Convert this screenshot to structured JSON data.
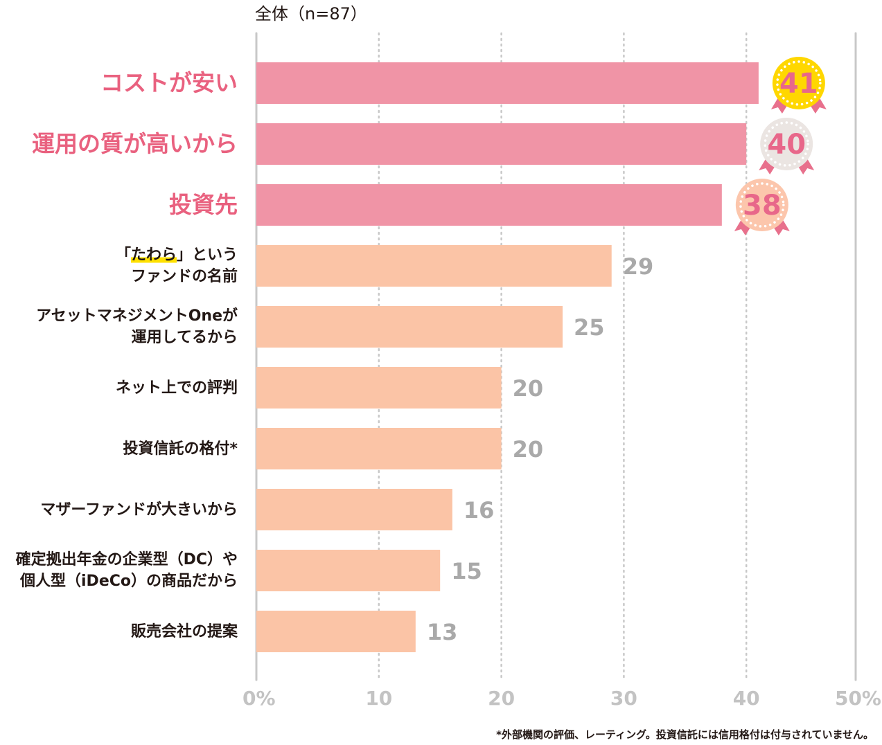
{
  "chart_data": {
    "type": "bar",
    "orientation": "horizontal",
    "title": "全体（n=87）",
    "categories": [
      [
        "コストが安い"
      ],
      [
        "運用の質が高いから"
      ],
      [
        "投資先"
      ],
      [
        "「たわら」という",
        "ファンドの名前"
      ],
      [
        "アセットマネジメントOneが",
        "運用してるから"
      ],
      [
        "ネット上での評判"
      ],
      [
        "投資信託の格付*"
      ],
      [
        "マザーファンドが大きいから"
      ],
      [
        "確定拠出年金の企業型（DC）や",
        "個人型（iDeCo）の商品だから"
      ],
      [
        "販売会社の提案"
      ]
    ],
    "values": [
      41,
      40,
      38,
      29,
      25,
      20,
      20,
      16,
      15,
      13
    ],
    "value_labels": [
      "41",
      "40",
      "38",
      "29",
      "25",
      "20",
      "20",
      "16",
      "15",
      "13"
    ],
    "highlight_top": 3,
    "xlim": [
      0,
      50
    ],
    "xticks": [
      0,
      10,
      20,
      30,
      40,
      50
    ],
    "xtick_labels": [
      "0%",
      "10",
      "20",
      "30",
      "40",
      "50%"
    ],
    "grid": true,
    "footnote": "*外部機関の評価、レーティング。投資信託には信用格付は付与されていません。",
    "colors": {
      "top_bar": "#f094a6",
      "bar": "#fbc4a6",
      "top_label": "#e9617f",
      "label": "#231815",
      "value": "#a9a9a9",
      "medal_gold": "#ffd700",
      "medal_silver": "#ebe5e2",
      "medal_bronze": "#fcc6ac",
      "medal_number": "#e8678a",
      "ribbon": "#e8708c",
      "grid": "#c8c8c8"
    }
  }
}
